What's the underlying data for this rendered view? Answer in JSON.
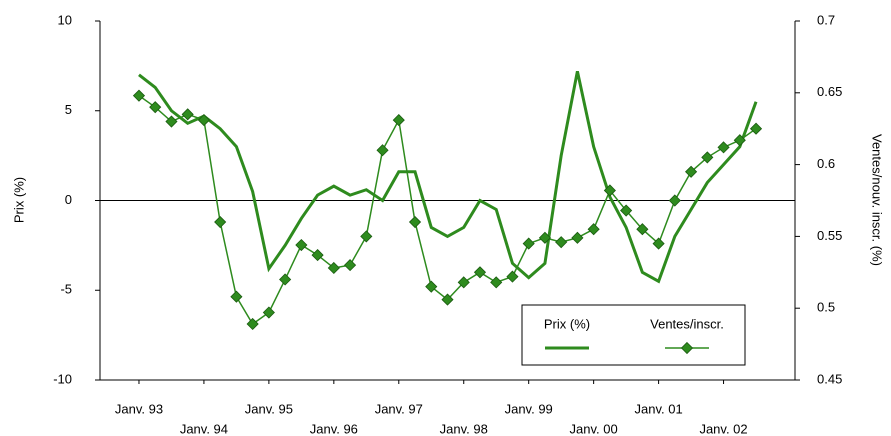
{
  "chart_data": {
    "type": "line",
    "y_label": "Prix (%)",
    "y2_label": "Ventes/nouv. inscr. (%)",
    "x": [
      1993.0,
      1993.25,
      1993.5,
      1993.75,
      1994.0,
      1994.25,
      1994.5,
      1994.75,
      1995.0,
      1995.25,
      1995.5,
      1995.75,
      1996.0,
      1996.25,
      1996.5,
      1996.75,
      1997.0,
      1997.25,
      1997.5,
      1997.75,
      1998.0,
      1998.25,
      1998.5,
      1998.75,
      1999.0,
      1999.25,
      1999.5,
      1999.75,
      2000.0,
      2000.25,
      2000.5,
      2000.75,
      2001.0,
      2001.25,
      2001.5,
      2001.75,
      2002.0,
      2002.25,
      2002.5
    ],
    "series": [
      {
        "name": "Prix (%)",
        "color": "#2e8b1e",
        "marker": "none",
        "values": [
          7.0,
          6.3,
          5.0,
          4.3,
          4.7,
          4.0,
          3.0,
          0.5,
          -3.8,
          -2.5,
          -1.0,
          0.3,
          0.8,
          0.3,
          0.6,
          0.0,
          1.6,
          1.6,
          -1.5,
          -2.0,
          -1.5,
          0.0,
          -0.5,
          -3.5,
          -4.3,
          -3.5,
          2.5,
          7.2,
          3.0,
          0.2,
          -1.5,
          -4.0,
          -4.5,
          -2.0,
          -0.5,
          1.0,
          2.0,
          3.0,
          5.5
        ]
      },
      {
        "name": "Ventes/inscr.",
        "color": "#2e8b1e",
        "marker": "diamond",
        "axis": "y2",
        "values": [
          0.648,
          0.64,
          0.63,
          0.635,
          0.631,
          0.56,
          0.508,
          0.489,
          0.497,
          0.52,
          0.544,
          0.537,
          0.528,
          0.53,
          0.55,
          0.61,
          0.631,
          0.56,
          0.515,
          0.506,
          0.518,
          0.525,
          0.518,
          0.522,
          0.545,
          0.549,
          0.546,
          0.549,
          0.555,
          0.582,
          0.568,
          0.555,
          0.545,
          0.575,
          0.595,
          0.605,
          0.612,
          0.617,
          0.625
        ]
      }
    ],
    "xlim": [
      1992.4,
      2003.1
    ],
    "xticks": [
      {
        "value": 1993,
        "label": "Janv. 93"
      },
      {
        "value": 1994,
        "label": "Janv. 94"
      },
      {
        "value": 1995,
        "label": "Janv. 95"
      },
      {
        "value": 1996,
        "label": "Janv. 96"
      },
      {
        "value": 1997,
        "label": "Janv. 97"
      },
      {
        "value": 1998,
        "label": "Janv. 98"
      },
      {
        "value": 1999,
        "label": "Janv. 99"
      },
      {
        "value": 2000,
        "label": "Janv. 00"
      },
      {
        "value": 2001,
        "label": "Janv. 01"
      },
      {
        "value": 2002,
        "label": "Janv. 02"
      }
    ],
    "ylim": [
      -10,
      10
    ],
    "yticks": [
      -10,
      -5,
      0,
      5,
      10
    ],
    "y2lim": [
      0.45,
      0.7
    ],
    "y2ticks": [
      0.45,
      0.5,
      0.55,
      0.6,
      0.65,
      0.7
    ],
    "legend": "lower-right"
  }
}
